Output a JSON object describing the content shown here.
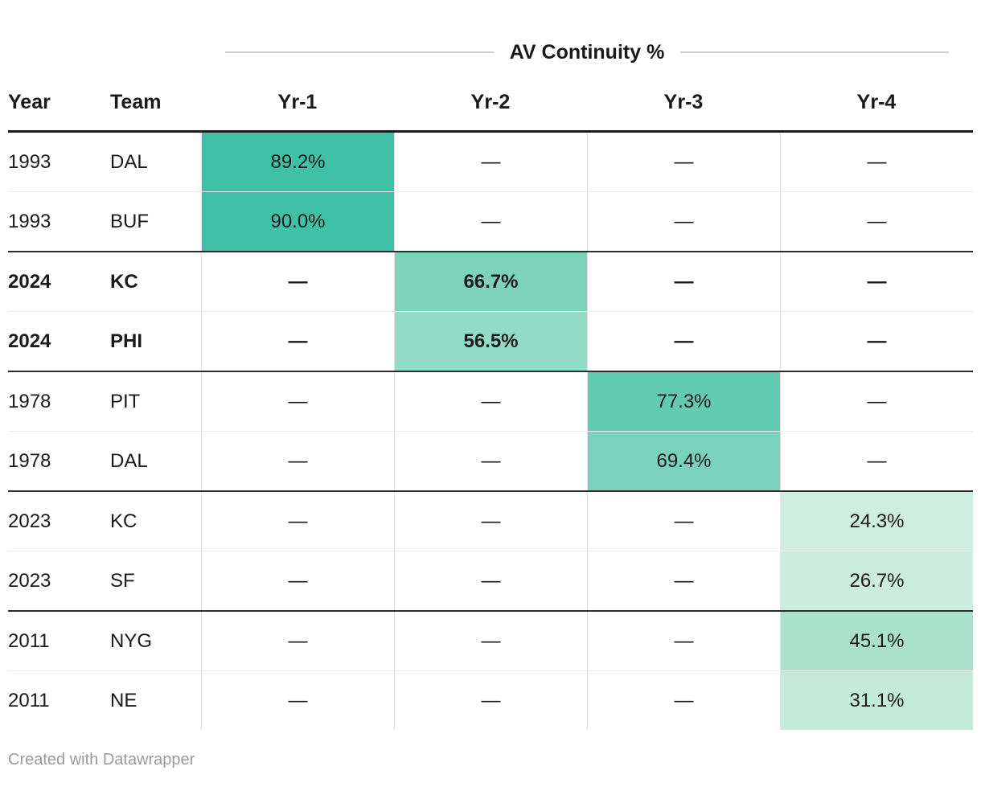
{
  "chart_data": {
    "type": "table",
    "title": "AV Continuity %",
    "columns": [
      "Year",
      "Team",
      "Yr-1",
      "Yr-2",
      "Yr-3",
      "Yr-4"
    ],
    "rows": [
      {
        "year": "1993",
        "team": "DAL",
        "bold": false,
        "cells": [
          {
            "text": "89.2%",
            "bg": "#3fc1a5"
          },
          {
            "text": "—",
            "bg": null
          },
          {
            "text": "—",
            "bg": null
          },
          {
            "text": "—",
            "bg": null
          }
        ]
      },
      {
        "year": "1993",
        "team": "BUF",
        "bold": false,
        "cells": [
          {
            "text": "90.0%",
            "bg": "#3fc1a5"
          },
          {
            "text": "—",
            "bg": null
          },
          {
            "text": "—",
            "bg": null
          },
          {
            "text": "—",
            "bg": null
          }
        ]
      },
      {
        "year": "2024",
        "team": "KC",
        "bold": true,
        "cells": [
          {
            "text": "—",
            "bg": null
          },
          {
            "text": "66.7%",
            "bg": "#7dd3ba"
          },
          {
            "text": "—",
            "bg": null
          },
          {
            "text": "—",
            "bg": null
          }
        ]
      },
      {
        "year": "2024",
        "team": "PHI",
        "bold": true,
        "cells": [
          {
            "text": "—",
            "bg": null
          },
          {
            "text": "56.5%",
            "bg": "#92dcc5"
          },
          {
            "text": "—",
            "bg": null
          },
          {
            "text": "—",
            "bg": null
          }
        ]
      },
      {
        "year": "1978",
        "team": "PIT",
        "bold": false,
        "cells": [
          {
            "text": "—",
            "bg": null
          },
          {
            "text": "—",
            "bg": null
          },
          {
            "text": "77.3%",
            "bg": "#62cbb2"
          },
          {
            "text": "—",
            "bg": null
          }
        ]
      },
      {
        "year": "1978",
        "team": "DAL",
        "bold": false,
        "cells": [
          {
            "text": "—",
            "bg": null
          },
          {
            "text": "—",
            "bg": null
          },
          {
            "text": "69.4%",
            "bg": "#79d2b9"
          },
          {
            "text": "—",
            "bg": null
          }
        ]
      },
      {
        "year": "2023",
        "team": "KC",
        "bold": false,
        "cells": [
          {
            "text": "—",
            "bg": null
          },
          {
            "text": "—",
            "bg": null
          },
          {
            "text": "—",
            "bg": null
          },
          {
            "text": "24.3%",
            "bg": "#cfede1"
          }
        ]
      },
      {
        "year": "2023",
        "team": "SF",
        "bold": false,
        "cells": [
          {
            "text": "—",
            "bg": null
          },
          {
            "text": "—",
            "bg": null
          },
          {
            "text": "—",
            "bg": null
          },
          {
            "text": "26.7%",
            "bg": "#cbecde"
          }
        ]
      },
      {
        "year": "2011",
        "team": "NYG",
        "bold": false,
        "cells": [
          {
            "text": "—",
            "bg": null
          },
          {
            "text": "—",
            "bg": null
          },
          {
            "text": "—",
            "bg": null
          },
          {
            "text": "45.1%",
            "bg": "#aae1cc"
          }
        ]
      },
      {
        "year": "2011",
        "team": "NE",
        "bold": false,
        "cells": [
          {
            "text": "—",
            "bg": null
          },
          {
            "text": "—",
            "bg": null
          },
          {
            "text": "—",
            "bg": null
          },
          {
            "text": "31.1%",
            "bg": "#c4ead9"
          }
        ]
      }
    ],
    "legend_note": "cell shading encodes AV Continuity % (darker teal = higher %)"
  },
  "colors": {
    "heatmap_max": "#3fc1a5",
    "heatmap_min": "#cfede1",
    "header_rule": "#1a1a1a",
    "group_separator": "#2d2d2d",
    "title_rule": "#cdcdcd",
    "footer_text": "#9a9a9a"
  },
  "footer": {
    "text": "Created with Datawrapper"
  }
}
